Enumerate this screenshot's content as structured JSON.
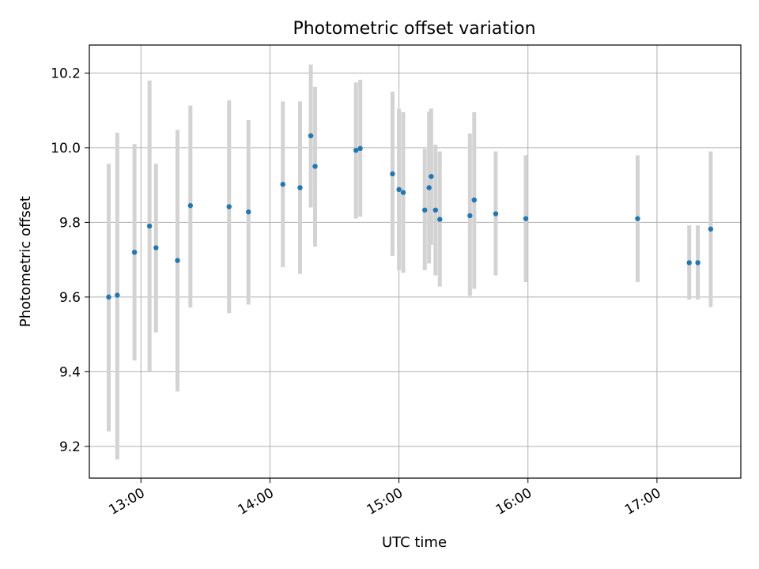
{
  "chart_data": {
    "type": "scatter",
    "title": "Photometric offset variation",
    "xlabel": "UTC time",
    "ylabel": "Photometric offset",
    "x_tick_labels": [
      "13:00",
      "14:00",
      "15:00",
      "16:00",
      "17:00"
    ],
    "x_ticks_hours": [
      13,
      14,
      15,
      16,
      17
    ],
    "y_tick_labels": [
      "9.2",
      "9.4",
      "9.6",
      "9.8",
      "10.0",
      "10.2"
    ],
    "y_ticks": [
      9.2,
      9.4,
      9.6,
      9.8,
      10.0,
      10.2
    ],
    "xlim_hours": [
      12.6,
      17.65
    ],
    "ylim": [
      9.115,
      10.275
    ],
    "grid": true,
    "colors": {
      "point": "#1f77b4",
      "errorbar": "#d3d3d3",
      "grid": "#b0b0b0"
    },
    "points": [
      {
        "time": "12:45",
        "y": 9.6,
        "low": 9.24,
        "high": 9.957
      },
      {
        "time": "12:49",
        "y": 9.605,
        "low": 9.165,
        "high": 10.04
      },
      {
        "time": "12:57",
        "y": 9.72,
        "low": 9.43,
        "high": 10.01
      },
      {
        "time": "13:04",
        "y": 9.79,
        "low": 9.4,
        "high": 10.18
      },
      {
        "time": "13:07",
        "y": 9.732,
        "low": 9.505,
        "high": 9.957
      },
      {
        "time": "13:17",
        "y": 9.698,
        "low": 9.347,
        "high": 10.048
      },
      {
        "time": "13:23",
        "y": 9.845,
        "low": 9.572,
        "high": 10.113
      },
      {
        "time": "13:41",
        "y": 9.842,
        "low": 9.557,
        "high": 10.127
      },
      {
        "time": "13:50",
        "y": 9.828,
        "low": 9.58,
        "high": 10.074
      },
      {
        "time": "14:06",
        "y": 9.902,
        "low": 9.68,
        "high": 10.124
      },
      {
        "time": "14:14",
        "y": 9.893,
        "low": 9.662,
        "high": 10.124
      },
      {
        "time": "14:19",
        "y": 10.032,
        "low": 9.84,
        "high": 10.223
      },
      {
        "time": "14:21",
        "y": 9.95,
        "low": 9.735,
        "high": 10.163
      },
      {
        "time": "14:40",
        "y": 9.993,
        "low": 9.81,
        "high": 10.175
      },
      {
        "time": "14:42",
        "y": 9.998,
        "low": 9.815,
        "high": 10.182
      },
      {
        "time": "14:57",
        "y": 9.93,
        "low": 9.71,
        "high": 10.15
      },
      {
        "time": "15:00",
        "y": 9.888,
        "low": 9.672,
        "high": 10.104
      },
      {
        "time": "15:02",
        "y": 9.88,
        "low": 9.665,
        "high": 10.095
      },
      {
        "time": "15:12",
        "y": 9.833,
        "low": 9.672,
        "high": 9.997
      },
      {
        "time": "15:14",
        "y": 9.893,
        "low": 9.69,
        "high": 10.097
      },
      {
        "time": "15:15",
        "y": 9.923,
        "low": 9.74,
        "high": 10.105
      },
      {
        "time": "15:17",
        "y": 9.833,
        "low": 9.658,
        "high": 10.008
      },
      {
        "time": "15:19",
        "y": 9.808,
        "low": 9.628,
        "high": 9.99
      },
      {
        "time": "15:33",
        "y": 9.818,
        "low": 9.603,
        "high": 10.038
      },
      {
        "time": "15:35",
        "y": 9.86,
        "low": 9.622,
        "high": 10.095
      },
      {
        "time": "15:45",
        "y": 9.823,
        "low": 9.658,
        "high": 9.99
      },
      {
        "time": "15:59",
        "y": 9.81,
        "low": 9.64,
        "high": 9.98
      },
      {
        "time": "16:51",
        "y": 9.81,
        "low": 9.64,
        "high": 9.98
      },
      {
        "time": "17:15",
        "y": 9.692,
        "low": 9.593,
        "high": 9.792
      },
      {
        "time": "17:19",
        "y": 9.692,
        "low": 9.593,
        "high": 9.792
      },
      {
        "time": "17:25",
        "y": 9.782,
        "low": 9.573,
        "high": 9.99
      }
    ]
  }
}
